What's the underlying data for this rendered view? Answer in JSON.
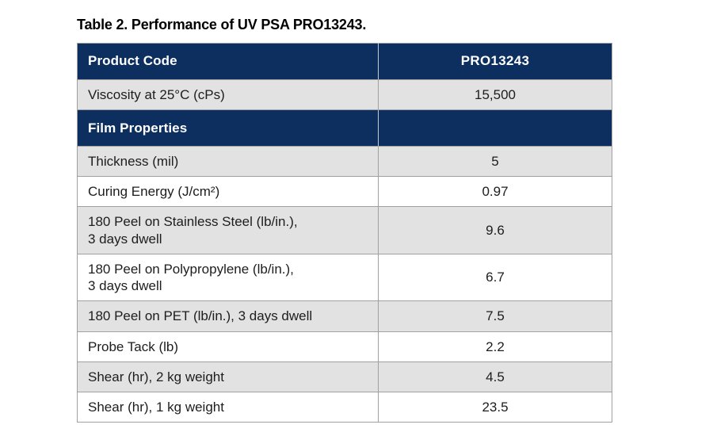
{
  "title": "Table 2. Performance of UV PSA PRO13243.",
  "colors": {
    "navy": "#0d2f5f",
    "row_gray": "#e2e2e2",
    "row_white": "#ffffff",
    "border": "#a0a0a0",
    "header_text": "#ffffff",
    "body_text": "#1d1d1d",
    "title_text": "#000000",
    "background": "#ffffff"
  },
  "table": {
    "columns": [
      "Product Code",
      "PRO13243"
    ],
    "header": {
      "label": "Product Code",
      "value": "PRO13243"
    },
    "rows": [
      {
        "type": "data",
        "shade": "gray",
        "label": "Viscosity at 25°C (cPs)",
        "value": "15,500"
      },
      {
        "type": "section",
        "shade": "navy",
        "label": "Film Properties",
        "value": ""
      },
      {
        "type": "data",
        "shade": "gray",
        "label": "Thickness (mil)",
        "value": "5"
      },
      {
        "type": "data",
        "shade": "white",
        "label": "Curing Energy (J/cm²)",
        "value": "0.97"
      },
      {
        "type": "data",
        "shade": "gray",
        "label": "180 Peel on Stainless Steel (lb/in.),\n3 days dwell",
        "value": "9.6"
      },
      {
        "type": "data",
        "shade": "white",
        "label": "180 Peel on Polypropylene (lb/in.),\n3 days dwell",
        "value": "6.7"
      },
      {
        "type": "data",
        "shade": "gray",
        "label": "180 Peel on PET (lb/in.), 3 days dwell",
        "value": "7.5"
      },
      {
        "type": "data",
        "shade": "white",
        "label": "Probe Tack (lb)",
        "value": "2.2"
      },
      {
        "type": "data",
        "shade": "gray",
        "label": "Shear (hr), 2 kg weight",
        "value": "4.5"
      },
      {
        "type": "data",
        "shade": "white",
        "label": "Shear (hr), 1 kg weight",
        "value": "23.5"
      }
    ]
  }
}
